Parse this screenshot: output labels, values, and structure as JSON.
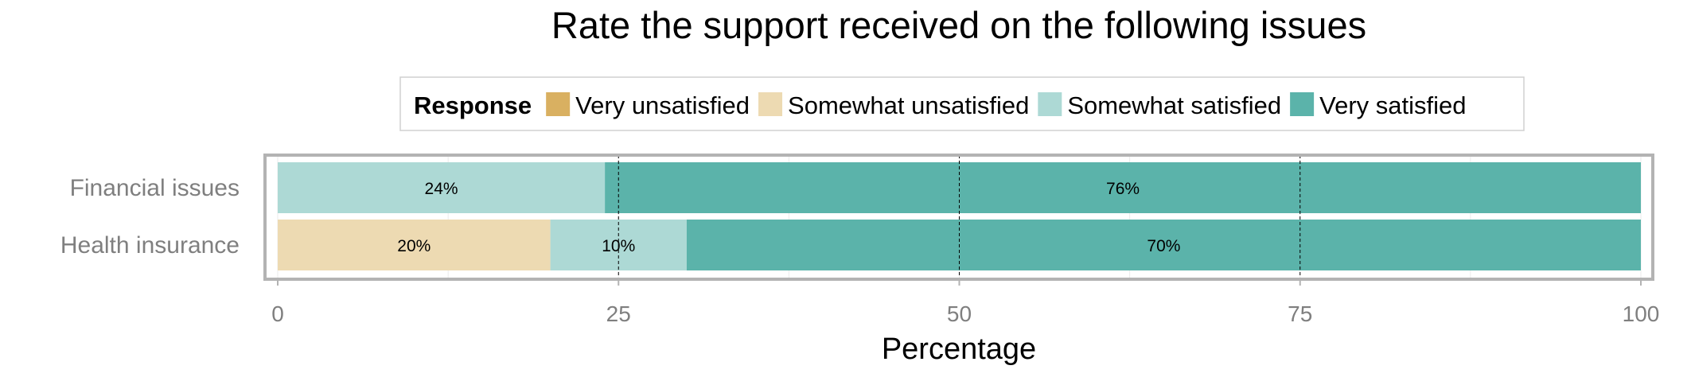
{
  "chart_data": {
    "type": "bar",
    "orientation": "horizontal",
    "stacked": true,
    "title": "Rate the support received on the following issues",
    "xlabel": "Percentage",
    "ylabel": "",
    "xlim": [
      0,
      100
    ],
    "xticks": [
      0,
      25,
      50,
      75,
      100
    ],
    "grid": true,
    "legend_title": "Response",
    "legend_position": "top",
    "categories": [
      "Financial issues",
      "Health insurance"
    ],
    "series": [
      {
        "name": "Very unsatisfied",
        "color": "#D9B061",
        "values": [
          0,
          0
        ]
      },
      {
        "name": "Somewhat unsatisfied",
        "color": "#EDDAB2",
        "values": [
          0,
          20
        ]
      },
      {
        "name": "Somewhat satisfied",
        "color": "#ADD9D5",
        "values": [
          24,
          10
        ]
      },
      {
        "name": "Very satisfied",
        "color": "#5BB3AA",
        "values": [
          76,
          70
        ]
      }
    ],
    "data_labels": [
      {
        "category": "Financial issues",
        "series": "Somewhat satisfied",
        "text": "24%"
      },
      {
        "category": "Financial issues",
        "series": "Very satisfied",
        "text": "76%"
      },
      {
        "category": "Health insurance",
        "series": "Somewhat unsatisfied",
        "text": "20%"
      },
      {
        "category": "Health insurance",
        "series": "Somewhat satisfied",
        "text": "10%"
      },
      {
        "category": "Health insurance",
        "series": "Very satisfied",
        "text": "70%"
      }
    ]
  }
}
